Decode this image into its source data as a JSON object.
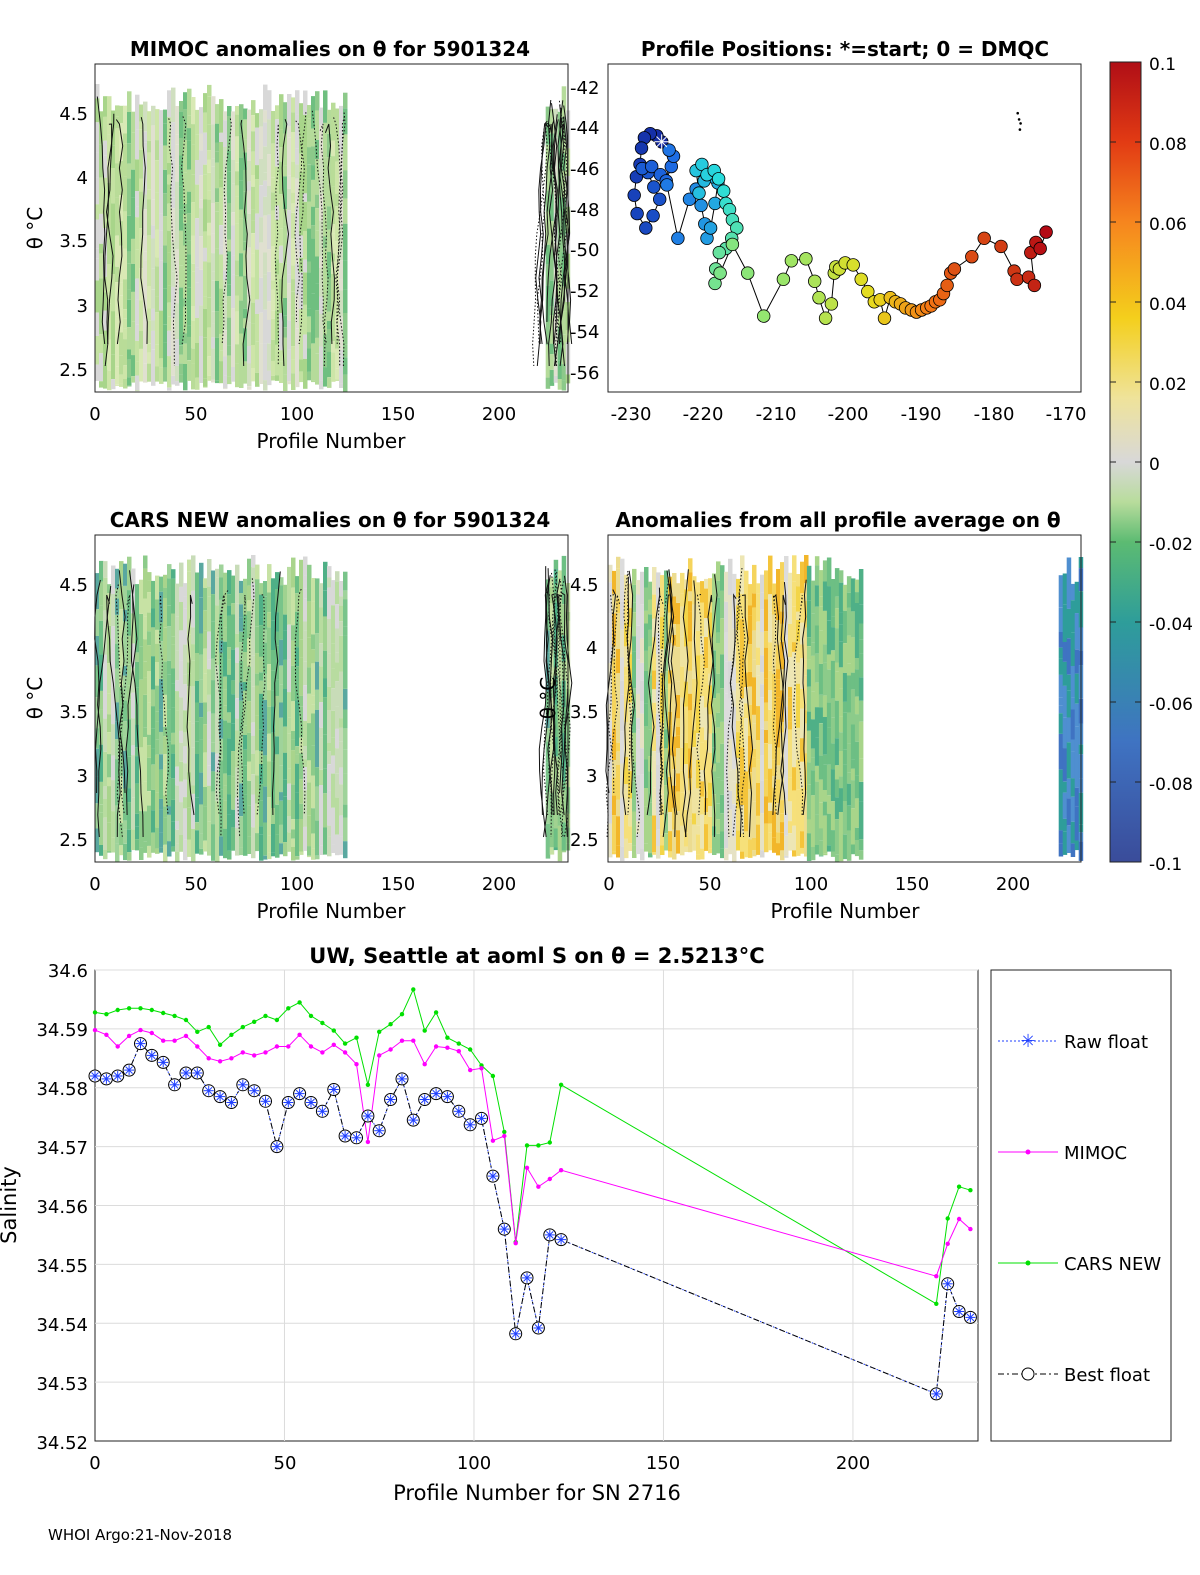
{
  "footer": "WHOI Argo:21-Nov-2018",
  "colorbar": {
    "ticks": [
      "0.1",
      "0.08",
      "0.06",
      "0.04",
      "0.02",
      "0",
      "-0.02",
      "-0.04",
      "-0.06",
      "-0.08",
      "-0.1"
    ],
    "range": [
      -0.1,
      0.1
    ]
  },
  "panels": {
    "mimoc": {
      "title": "MIMOC anomalies on θ  for 5901324",
      "xlabel": "Profile Number",
      "ylabel": "θ °C",
      "xticks": [
        "0",
        "50",
        "100",
        "150",
        "200"
      ],
      "yticks": [
        "4.5",
        "4",
        "3.5",
        "3",
        "2.5"
      ]
    },
    "positions": {
      "title": "Profile Positions: *=start; 0 = DMQC",
      "xticks": [
        "-230",
        "-220",
        "-210",
        "-200",
        "-190",
        "-180",
        "-170"
      ],
      "yticks": [
        "-42",
        "-44",
        "-46",
        "-48",
        "-50",
        "-52",
        "-54",
        "-56"
      ]
    },
    "cars": {
      "title": "CARS NEW anomalies on θ for 5901324",
      "xlabel": "Profile Number",
      "ylabel": "θ °C",
      "xticks": [
        "0",
        "50",
        "100",
        "150",
        "200"
      ],
      "yticks": [
        "4.5",
        "4",
        "3.5",
        "3",
        "2.5"
      ]
    },
    "allavg": {
      "title": "Anomalies from all profile average on θ",
      "xlabel": "Profile Number",
      "ylabel": "θ °C",
      "xticks": [
        "0",
        "50",
        "100",
        "150",
        "200"
      ],
      "yticks": [
        "4.5",
        "4",
        "3.5",
        "3",
        "2.5"
      ]
    }
  },
  "chart_data": {
    "type": "line",
    "title": "UW, Seattle at aoml S on θ = 2.5213°C",
    "xlabel": "Profile Number for SN 2716",
    "ylabel": "Salinity",
    "xlim": [
      0,
      233
    ],
    "ylim": [
      34.52,
      34.6
    ],
    "xticks": [
      "0",
      "50",
      "100",
      "150",
      "200"
    ],
    "yticks": [
      "34.6",
      "34.59",
      "34.58",
      "34.57",
      "34.56",
      "34.55",
      "34.54",
      "34.53",
      "34.52"
    ],
    "legend": [
      "Raw float",
      "MIMOC",
      "CARS NEW",
      "Best float"
    ],
    "colors": {
      "raw": "#1f3fff",
      "mimoc": "#ff00ff",
      "cars": "#00e000",
      "best": "#000000"
    },
    "series": {
      "best": [
        [
          0,
          34.582
        ],
        [
          3,
          34.5815
        ],
        [
          6,
          34.582
        ],
        [
          9,
          34.583
        ],
        [
          12,
          34.5875
        ],
        [
          15,
          34.5855
        ],
        [
          18,
          34.5843
        ],
        [
          21,
          34.5805
        ],
        [
          24,
          34.5825
        ],
        [
          27,
          34.5825
        ],
        [
          30,
          34.5795
        ],
        [
          33,
          34.5785
        ],
        [
          36,
          34.5775
        ],
        [
          39,
          34.5805
        ],
        [
          42,
          34.5795
        ],
        [
          45,
          34.5777
        ],
        [
          48,
          34.57
        ],
        [
          51,
          34.5775
        ],
        [
          54,
          34.579
        ],
        [
          57,
          34.5775
        ],
        [
          60,
          34.576
        ],
        [
          63,
          34.5797
        ],
        [
          66,
          34.5718
        ],
        [
          69,
          34.5715
        ],
        [
          72,
          34.5752
        ],
        [
          75,
          34.5727
        ],
        [
          78,
          34.578
        ],
        [
          81,
          34.5815
        ],
        [
          84,
          34.5745
        ],
        [
          87,
          34.578
        ],
        [
          90,
          34.579
        ],
        [
          93,
          34.5785
        ],
        [
          96,
          34.576
        ],
        [
          99,
          34.5737
        ],
        [
          102,
          34.5748
        ],
        [
          105,
          34.565
        ],
        [
          108,
          34.556
        ],
        [
          111,
          34.5382
        ],
        [
          114,
          34.5477
        ],
        [
          117,
          34.5392
        ],
        [
          120,
          34.555
        ],
        [
          123,
          34.5542
        ],
        [
          222,
          34.528
        ],
        [
          225,
          34.5467
        ],
        [
          228,
          34.542
        ],
        [
          231,
          34.541
        ]
      ],
      "mimoc": [
        [
          0,
          34.5898
        ],
        [
          3,
          34.589
        ],
        [
          6,
          34.587
        ],
        [
          9,
          34.5888
        ],
        [
          12,
          34.5898
        ],
        [
          15,
          34.5893
        ],
        [
          18,
          34.588
        ],
        [
          21,
          34.588
        ],
        [
          24,
          34.5888
        ],
        [
          27,
          34.587
        ],
        [
          30,
          34.585
        ],
        [
          33,
          34.5845
        ],
        [
          36,
          34.585
        ],
        [
          39,
          34.586
        ],
        [
          42,
          34.5855
        ],
        [
          45,
          34.586
        ],
        [
          48,
          34.587
        ],
        [
          51,
          34.587
        ],
        [
          54,
          34.589
        ],
        [
          57,
          34.587
        ],
        [
          60,
          34.586
        ],
        [
          63,
          34.5873
        ],
        [
          66,
          34.586
        ],
        [
          69,
          34.584
        ],
        [
          72,
          34.5708
        ],
        [
          75,
          34.5855
        ],
        [
          78,
          34.5865
        ],
        [
          81,
          34.588
        ],
        [
          84,
          34.588
        ],
        [
          87,
          34.584
        ],
        [
          90,
          34.587
        ],
        [
          93,
          34.5868
        ],
        [
          96,
          34.5862
        ],
        [
          99,
          34.583
        ],
        [
          102,
          34.5833
        ],
        [
          105,
          34.571
        ],
        [
          108,
          34.5718
        ],
        [
          111,
          34.5536
        ],
        [
          114,
          34.5664
        ],
        [
          117,
          34.5632
        ],
        [
          120,
          34.5645
        ],
        [
          123,
          34.566
        ],
        [
          222,
          34.548
        ],
        [
          225,
          34.5535
        ],
        [
          228,
          34.5577
        ],
        [
          231,
          34.556
        ]
      ],
      "cars": [
        [
          0,
          34.5928
        ],
        [
          3,
          34.5925
        ],
        [
          6,
          34.5932
        ],
        [
          9,
          34.5935
        ],
        [
          12,
          34.5935
        ],
        [
          15,
          34.5932
        ],
        [
          18,
          34.5927
        ],
        [
          21,
          34.5922
        ],
        [
          24,
          34.5915
        ],
        [
          27,
          34.5895
        ],
        [
          30,
          34.5903
        ],
        [
          33,
          34.5873
        ],
        [
          36,
          34.589
        ],
        [
          39,
          34.5903
        ],
        [
          42,
          34.5912
        ],
        [
          45,
          34.5922
        ],
        [
          48,
          34.5915
        ],
        [
          51,
          34.5935
        ],
        [
          54,
          34.5945
        ],
        [
          57,
          34.5922
        ],
        [
          60,
          34.591
        ],
        [
          63,
          34.5897
        ],
        [
          66,
          34.5875
        ],
        [
          69,
          34.5885
        ],
        [
          72,
          34.5805
        ],
        [
          75,
          34.5895
        ],
        [
          78,
          34.5908
        ],
        [
          81,
          34.5925
        ],
        [
          84,
          34.5967
        ],
        [
          87,
          34.5897
        ],
        [
          90,
          34.5928
        ],
        [
          93,
          34.5885
        ],
        [
          96,
          34.5875
        ],
        [
          99,
          34.5865
        ],
        [
          102,
          34.5838
        ],
        [
          105,
          34.582
        ],
        [
          108,
          34.5725
        ],
        [
          111,
          34.5538
        ],
        [
          114,
          34.5702
        ],
        [
          117,
          34.5702
        ],
        [
          120,
          34.5707
        ],
        [
          123,
          34.5805
        ],
        [
          222,
          34.5433
        ],
        [
          225,
          34.5578
        ],
        [
          228,
          34.5632
        ],
        [
          231,
          34.5626
        ]
      ]
    }
  },
  "positions_data": {
    "xlim": [
      -233,
      -168
    ],
    "ylim": [
      -57,
      -41
    ],
    "track": [
      [
        -225.6,
        -44.8
      ],
      [
        -226.3,
        -44.5
      ],
      [
        -227.2,
        -44.4
      ],
      [
        -228.0,
        -44.6
      ],
      [
        -228.4,
        -45.1
      ],
      [
        -228.6,
        -45.9
      ],
      [
        -229.1,
        -46.5
      ],
      [
        -229.4,
        -47.4
      ],
      [
        -229.0,
        -48.3
      ],
      [
        -227.8,
        -49.0
      ],
      [
        -226.8,
        -48.4
      ],
      [
        -225.9,
        -47.6
      ],
      [
        -226.7,
        -47.0
      ],
      [
        -227.5,
        -46.3
      ],
      [
        -228.3,
        -46.1
      ],
      [
        -227.0,
        -46.0
      ],
      [
        -225.8,
        -46.4
      ],
      [
        -225.0,
        -46.7
      ],
      [
        -224.3,
        -46.0
      ],
      [
        -224.0,
        -45.5
      ],
      [
        -224.6,
        -45.2
      ],
      [
        -224.9,
        -46.9
      ],
      [
        -223.4,
        -49.5
      ],
      [
        -221.8,
        -47.6
      ],
      [
        -220.9,
        -47.1
      ],
      [
        -220.2,
        -47.9
      ],
      [
        -219.7,
        -48.8
      ],
      [
        -219.4,
        -49.5
      ],
      [
        -218.9,
        -49.0
      ],
      [
        -218.3,
        -47.8
      ],
      [
        -217.9,
        -46.8
      ],
      [
        -218.6,
        -46.5
      ],
      [
        -219.8,
        -46.7
      ],
      [
        -220.5,
        -47.3
      ],
      [
        -220.9,
        -46.2
      ],
      [
        -220.1,
        -45.9
      ],
      [
        -219.4,
        -46.4
      ],
      [
        -218.4,
        -46.2
      ],
      [
        -217.8,
        -46.6
      ],
      [
        -217.1,
        -47.2
      ],
      [
        -216.8,
        -47.8
      ],
      [
        -216.3,
        -48.1
      ],
      [
        -215.9,
        -48.6
      ],
      [
        -215.3,
        -49.0
      ],
      [
        -216.0,
        -49.5
      ],
      [
        -216.8,
        -50.0
      ],
      [
        -217.7,
        -50.2
      ],
      [
        -218.2,
        -51.0
      ],
      [
        -218.3,
        -51.7
      ],
      [
        -217.6,
        -51.2
      ],
      [
        -215.9,
        -49.8
      ],
      [
        -213.8,
        -51.2
      ],
      [
        -211.6,
        -53.3
      ],
      [
        -208.9,
        -51.5
      ],
      [
        -207.8,
        -50.6
      ],
      [
        -205.8,
        -50.5
      ],
      [
        -204.6,
        -51.6
      ],
      [
        -204.0,
        -52.4
      ],
      [
        -203.1,
        -53.4
      ],
      [
        -202.3,
        -52.7
      ],
      [
        -201.9,
        -51.2
      ],
      [
        -201.7,
        -50.9
      ],
      [
        -201.2,
        -51.0
      ],
      [
        -200.4,
        -50.7
      ],
      [
        -199.3,
        -50.8
      ],
      [
        -198.2,
        -51.5
      ],
      [
        -197.3,
        -52.1
      ],
      [
        -196.4,
        -52.6
      ],
      [
        -195.6,
        -52.5
      ],
      [
        -195.0,
        -53.4
      ],
      [
        -194.2,
        -52.4
      ],
      [
        -193.5,
        -52.6
      ],
      [
        -192.8,
        -52.7
      ],
      [
        -192.1,
        -52.9
      ],
      [
        -191.3,
        -53.0
      ],
      [
        -190.6,
        -53.1
      ],
      [
        -189.9,
        -53.0
      ],
      [
        -189.2,
        -52.9
      ],
      [
        -188.6,
        -52.8
      ],
      [
        -188.0,
        -52.6
      ],
      [
        -187.4,
        -52.5
      ],
      [
        -186.9,
        -52.2
      ],
      [
        -186.4,
        -51.8
      ],
      [
        -185.9,
        -51.2
      ],
      [
        -185.4,
        -51.0
      ],
      [
        -183.0,
        -50.4
      ],
      [
        -181.3,
        -49.5
      ],
      [
        -179.0,
        -49.9
      ],
      [
        -177.2,
        -51.1
      ],
      [
        -176.8,
        -51.5
      ],
      [
        -175.2,
        -51.4
      ],
      [
        -174.4,
        -51.8
      ],
      [
        -174.9,
        -50.2
      ],
      [
        -174.2,
        -49.7
      ],
      [
        -173.6,
        -50.0
      ],
      [
        -172.8,
        -49.2
      ]
    ],
    "fliers": [
      [
        -176.7,
        -43.4
      ],
      [
        -176.5,
        -43.7
      ],
      [
        -176.3,
        -43.9
      ],
      [
        -176.4,
        -44.2
      ]
    ]
  }
}
